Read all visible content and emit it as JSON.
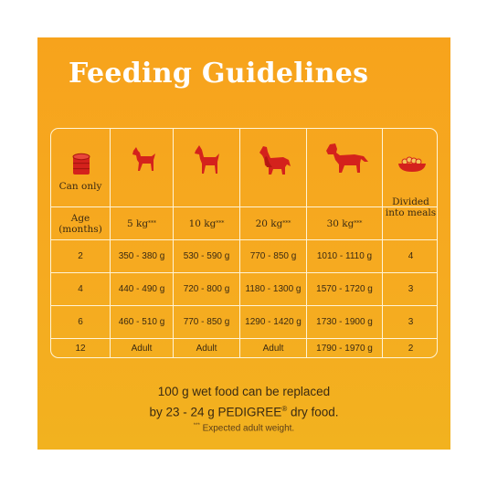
{
  "title": "Feeding Guidelines",
  "table": {
    "corner_label": "Can only",
    "divided_label": "Divided into meals",
    "age_label": "Age (months)",
    "weight_headers": [
      "5 kg",
      "10 kg",
      "20 kg",
      "30 kg"
    ],
    "weight_marker": "***",
    "rows": [
      {
        "age": "2",
        "values": [
          "350 - 380 g",
          "530 - 590 g",
          "770 - 850 g",
          "1010 - 1110 g"
        ],
        "meals": "4"
      },
      {
        "age": "4",
        "values": [
          "440 - 490 g",
          "720 - 800 g",
          "1180 - 1300 g",
          "1570 - 1720 g"
        ],
        "meals": "3"
      },
      {
        "age": "6",
        "values": [
          "460 - 510 g",
          "770 - 850 g",
          "1290 - 1420 g",
          "1730 - 1900 g"
        ],
        "meals": "3"
      },
      {
        "age": "12",
        "values": [
          "Adult",
          "Adult",
          "Adult",
          "1790 - 1970 g"
        ],
        "meals": "2"
      }
    ]
  },
  "footer": {
    "line1": "100 g wet food can be replaced",
    "line2_prefix": "by 23 - 24 g PEDIGREE",
    "registered_mark": "®",
    "line2_suffix": " dry food.",
    "marker": "***",
    "expected_weight": " Expected adult weight."
  },
  "colors": {
    "background": "#f6aa20",
    "grid_lines": "#fff4d6",
    "icon_red": "#d4221c",
    "text": "#3a2a12"
  },
  "icons": [
    "can-icon",
    "small-dog-icon",
    "medium-dog-icon",
    "collie-dog-icon",
    "large-dog-icon",
    "food-bowl-icon"
  ]
}
